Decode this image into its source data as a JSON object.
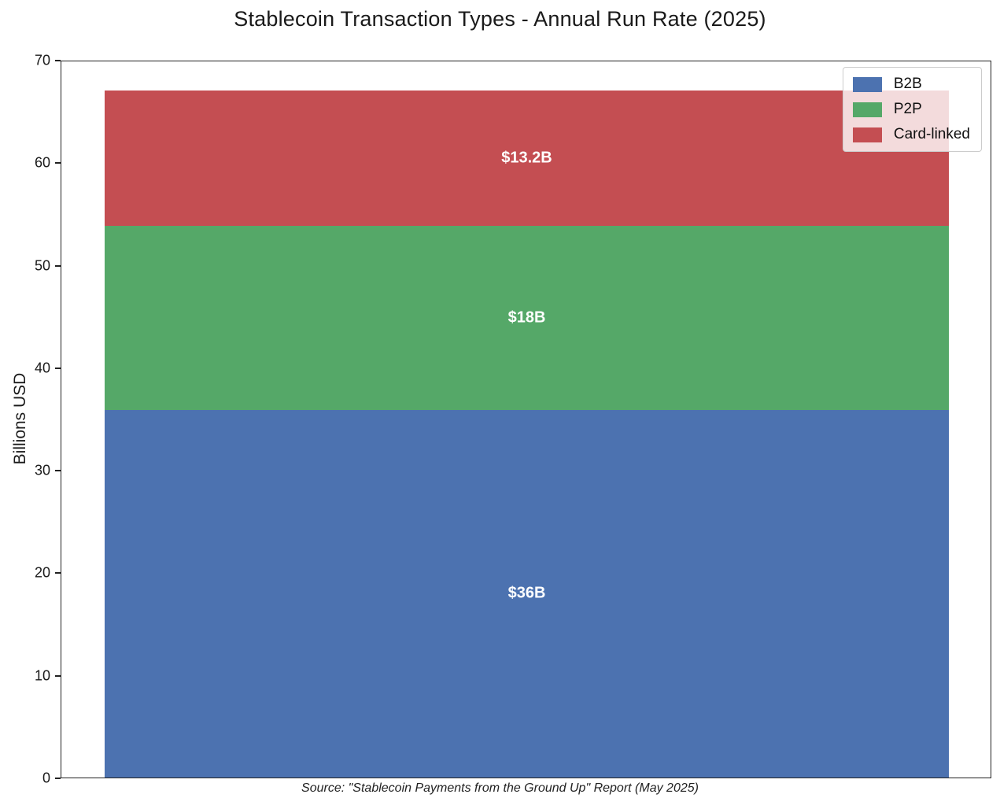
{
  "chart_data": {
    "type": "bar",
    "stacked": true,
    "orientation": "vertical",
    "title": "Stablecoin Transaction Types - Annual Run Rate (2025)",
    "xlabel": "",
    "ylabel": "Billions USD",
    "ylim": [
      0,
      70
    ],
    "yticks": [
      0,
      10,
      20,
      30,
      40,
      50,
      60,
      70
    ],
    "grid": false,
    "legend_position": "upper right",
    "value_label_color": "#ffffff",
    "series": [
      {
        "name": "B2B",
        "value": 36,
        "label": "$36B",
        "color": "#4C72B0"
      },
      {
        "name": "P2P",
        "value": 18,
        "label": "$18B",
        "color": "#55A868"
      },
      {
        "name": "Card-linked",
        "value": 13.2,
        "label": "$13.2B",
        "color": "#C44E52"
      }
    ],
    "total": 67.2,
    "source": "Source: \"Stablecoin Payments from the Ground Up\" Report (May 2025)"
  }
}
